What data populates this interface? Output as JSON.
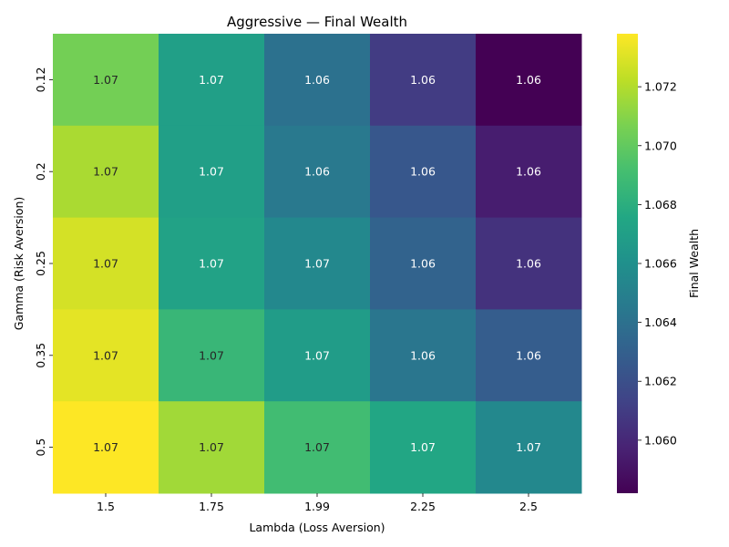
{
  "chart_data": {
    "type": "heatmap",
    "title": "Aggressive — Final Wealth",
    "xlabel": "Lambda (Loss Aversion)",
    "ylabel": "Gamma (Risk Aversion)",
    "colorbar_label": "Final Wealth",
    "colormap": "viridis",
    "x_categories": [
      "1.5",
      "1.75",
      "1.99",
      "2.25",
      "2.5"
    ],
    "y_categories": [
      "0.12",
      "0.2",
      "0.25",
      "0.35",
      "0.5"
    ],
    "values": [
      [
        1.0705,
        1.067,
        1.064,
        1.061,
        1.0582
      ],
      [
        1.0718,
        1.067,
        1.0645,
        1.0625,
        1.0595
      ],
      [
        1.0728,
        1.0672,
        1.0655,
        1.0632,
        1.0605
      ],
      [
        1.0732,
        1.0686,
        1.0668,
        1.0643,
        1.0628
      ],
      [
        1.0738,
        1.0716,
        1.069,
        1.0675,
        1.0655
      ]
    ],
    "annotations": [
      [
        "1.07",
        "1.07",
        "1.06",
        "1.06",
        "1.06"
      ],
      [
        "1.07",
        "1.07",
        "1.06",
        "1.06",
        "1.06"
      ],
      [
        "1.07",
        "1.07",
        "1.07",
        "1.06",
        "1.06"
      ],
      [
        "1.07",
        "1.07",
        "1.07",
        "1.06",
        "1.06"
      ],
      [
        "1.07",
        "1.07",
        "1.07",
        "1.07",
        "1.07"
      ]
    ],
    "colorbar_range": [
      1.0582,
      1.0738
    ],
    "colorbar_ticks": [
      "1.060",
      "1.062",
      "1.064",
      "1.066",
      "1.068",
      "1.070",
      "1.072"
    ]
  }
}
